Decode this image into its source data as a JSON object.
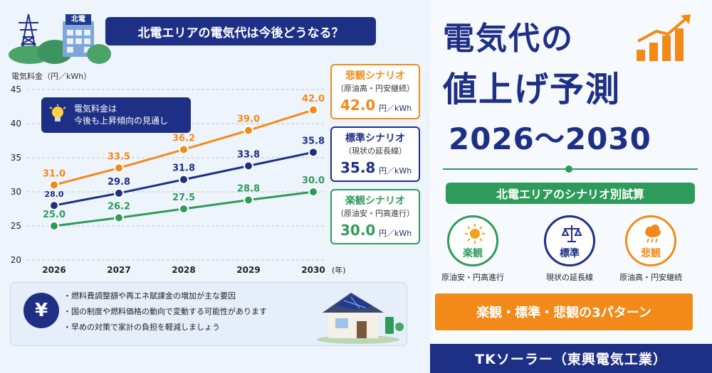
{
  "header": {
    "building_sign": "北電",
    "question": "北電エリアの電気代は今後どうなる？"
  },
  "chart_data": {
    "type": "line",
    "ylabel": "電気料金（円／kWh）",
    "xlabel_unit": "(年)",
    "categories": [
      "2026",
      "2027",
      "2028",
      "2029",
      "2030"
    ],
    "ylim": [
      20,
      45
    ],
    "yticks": [
      20,
      25,
      30,
      35,
      40,
      45
    ],
    "grid": true,
    "series": [
      {
        "name": "悲観シナリオ",
        "color": "#f28a1a",
        "values": [
          31.0,
          33.5,
          36.2,
          39.0,
          42.0
        ],
        "labels": [
          "31.0",
          "33.5",
          "36.2",
          "39.0",
          "42.0"
        ]
      },
      {
        "name": "標準シナリオ",
        "color": "#1e2f86",
        "values": [
          28.0,
          29.8,
          31.8,
          33.8,
          35.8
        ],
        "labels": [
          "28.0",
          "29.8",
          "31.8",
          "33.8",
          "35.8"
        ]
      },
      {
        "name": "楽観シナリオ",
        "color": "#2f9b5b",
        "values": [
          25.0,
          26.2,
          27.5,
          28.8,
          30.0
        ],
        "labels": [
          "25.0",
          "26.2",
          "27.5",
          "28.8",
          "30.0"
        ]
      }
    ],
    "annotation_line1": "電気料金は",
    "annotation_line2": "今後も上昇傾向の見通し"
  },
  "cards": [
    {
      "title": "悲観シナリオ",
      "subtitle": "（原油高・円安継続）",
      "value": "42.0",
      "unit": "円／kWh",
      "color": "#f28a1a"
    },
    {
      "title": "標準シナリオ",
      "subtitle": "（現状の延長線）",
      "value": "35.8",
      "unit": "円／kWh",
      "color": "#1e2f86"
    },
    {
      "title": "楽観シナリオ",
      "subtitle": "（原油安・円高進行）",
      "value": "30.0",
      "unit": "円／kWh",
      "color": "#2f9b5b"
    }
  ],
  "notes": {
    "icon_symbol": "¥",
    "items": [
      "・燃料費調整額や再エネ賦課金の増加が主な要因",
      "・国の制度や燃料価格の動向で変動する可能性があります",
      "・早めの対策で家計の負担を軽減しましょう"
    ]
  },
  "right": {
    "title_line1": "電気代の",
    "title_line2": "値上げ予測",
    "title_line3": "2026～2030",
    "section_banner": "北電エリアのシナリオ別試算",
    "scenarios": [
      {
        "label": "楽観",
        "sub": "原油安・円高進行",
        "color": "#2f9b5b",
        "icon": "sun-icon"
      },
      {
        "label": "標準",
        "sub": "現状の延長線",
        "color": "#1e2f86",
        "icon": "scale-icon"
      },
      {
        "label": "悲観",
        "sub": "原油高・円安継続",
        "color": "#f28a1a",
        "icon": "rain-cloud-icon"
      }
    ],
    "patterns_banner": "楽観・標準・悲観の3パターン",
    "footer": "TKソーラー（東興電気工業）"
  }
}
